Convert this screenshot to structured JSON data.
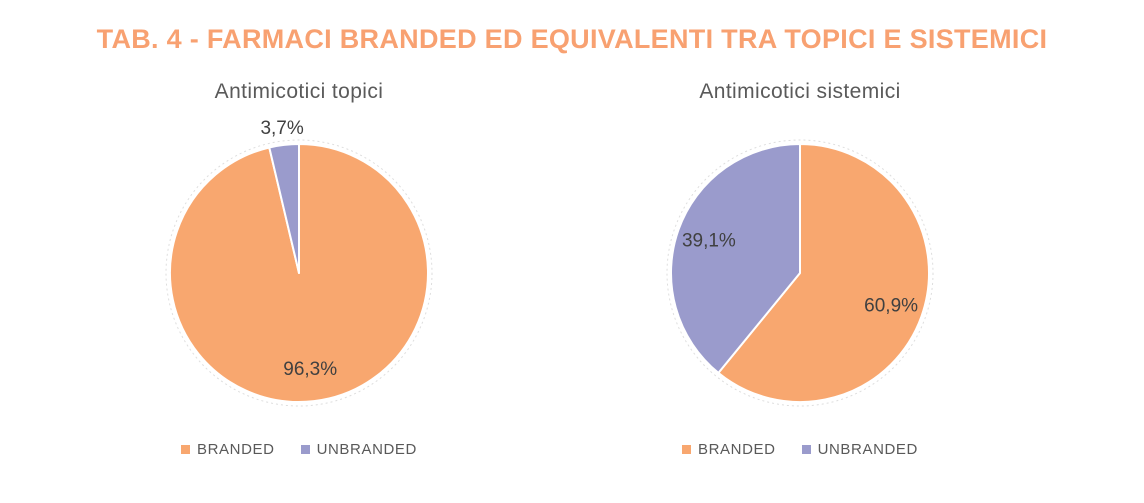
{
  "page_title": "TAB. 4 - FARMACI BRANDED ED EQUIVALENTI TRA TOPICI E SISTEMICI",
  "colors": {
    "title": "#F8A171",
    "branded": "#F8A76F",
    "unbranded": "#9A9BCC",
    "chart_title_text": "#5A5A5A",
    "data_label_text": "#404040",
    "legend_text": "#595959",
    "slice_border": "#FFFFFF",
    "outer_ring": "#DEDEDE"
  },
  "chart_data": [
    {
      "type": "pie",
      "title": "Antimicotici topici",
      "categories": [
        "BRANDED",
        "UNBRANDED"
      ],
      "values": [
        96.3,
        3.7
      ],
      "value_labels": [
        "96,3%",
        "3,7%"
      ],
      "slice_colors": [
        "#F8A76F",
        "#9A9BCC"
      ],
      "start_angle_deg": 0,
      "direction": "clockwise",
      "legend_position": "bottom",
      "legend_labels": [
        "BRANDED",
        "UNBRANDED"
      ]
    },
    {
      "type": "pie",
      "title": "Antimicotici sistemici",
      "categories": [
        "BRANDED",
        "UNBRANDED"
      ],
      "values": [
        60.9,
        39.1
      ],
      "value_labels": [
        "60,9%",
        "39,1%"
      ],
      "slice_colors": [
        "#F8A76F",
        "#9A9BCC"
      ],
      "start_angle_deg": 0,
      "direction": "clockwise",
      "legend_position": "bottom",
      "legend_labels": [
        "BRANDED",
        "UNBRANDED"
      ]
    }
  ]
}
